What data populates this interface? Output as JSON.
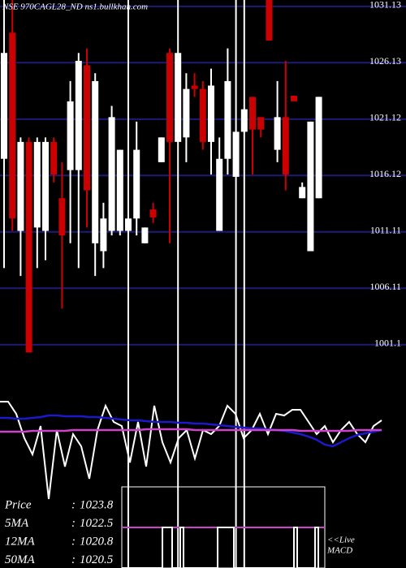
{
  "chart_data": [
    {
      "type": "candlestick",
      "title": "NSE 970CAGL28_ND ns1.bullkhan.com",
      "open": [
        1017.6,
        1028.8,
        1011.2,
        1019.1,
        1011.5,
        1011.2,
        1019.1,
        1014.1,
        1016.6,
        1016.6,
        1025.9,
        1010.1,
        1009.4,
        1011.2,
        1011.2,
        1011.2,
        1012.3,
        1010.1,
        1013.1,
        1017.3,
        1027.0,
        1019.1,
        1019.5,
        1024.1,
        1023.8,
        1019.1,
        1011.2,
        1017.6,
        1016.0,
        1020.0,
        1023.1,
        1021.3,
        1031.7,
        1018.4,
        1021.3,
        1023.2,
        1014.1,
        1009.4,
        1014.1
      ],
      "high": [
        1031.7,
        1031.7,
        1019.5,
        1019.5,
        1019.5,
        1019.5,
        1019.5,
        1017.3,
        1024.5,
        1027.0,
        1027.4,
        1025.2,
        1013.7,
        1022.3,
        1018.4,
        1031.7,
        1020.9,
        1011.5,
        1013.7,
        1019.5,
        1027.4,
        1031.7,
        1025.2,
        1025.2,
        1024.5,
        1025.6,
        1019.5,
        1027.4,
        1031.7,
        1031.7,
        1023.1,
        1021.3,
        1031.7,
        1024.5,
        1026.3,
        1023.2,
        1015.5,
        1020.9,
        1023.1
      ],
      "low": [
        1007.9,
        1011.2,
        1007.2,
        1000.4,
        1007.9,
        1008.6,
        1015.5,
        1004.3,
        1010.1,
        1007.9,
        1011.5,
        1007.2,
        1007.9,
        1010.8,
        1010.8,
        981.3,
        1010.8,
        1010.1,
        1011.9,
        1017.3,
        1010.1,
        981.3,
        1017.3,
        1023.1,
        1018.4,
        1016.2,
        1011.2,
        1016.2,
        981.3,
        981.3,
        1016.2,
        1019.5,
        1028.1,
        1017.3,
        1014.8,
        1022.7,
        1014.1,
        1009.4,
        1014.1
      ],
      "close": [
        1027.0,
        1012.3,
        1019.1,
        1000.4,
        1019.1,
        1019.1,
        1016.2,
        1010.8,
        1022.7,
        1026.3,
        1014.8,
        1024.5,
        1012.3,
        1021.3,
        1018.4,
        1012.3,
        1018.4,
        1011.5,
        1012.4,
        1019.5,
        1019.1,
        1027.0,
        1023.8,
        1023.8,
        1019.1,
        1024.1,
        1017.6,
        1024.5,
        1020.0,
        1022.0,
        1020.2,
        1020.2,
        1028.1,
        1021.3,
        1016.2,
        1022.7,
        1015.1,
        1020.9,
        1023.1
      ],
      "up_color": "#ffffff",
      "down_color": "#cc0000",
      "ylim": [
        1000,
        1031.7
      ],
      "yticks": [
        1031.13,
        1026.13,
        1021.12,
        1016.12,
        1011.11,
        1006.11,
        1001.1
      ],
      "grid": true,
      "grid_color": "#1c1c78",
      "stats": [
        {
          "label": "Price",
          "value": 1023.8
        },
        {
          "label": "5MA",
          "value": 1022.5
        },
        {
          "label": "12MA",
          "value": 1020.8
        },
        {
          "label": "50MA",
          "value": 1020.5
        }
      ],
      "stat_separator": ":"
    },
    {
      "type": "line",
      "indicator_label": [
        "<<Live",
        "MACD"
      ],
      "ylim": [
        0,
        140
      ],
      "series": [
        {
          "color": "#ffffff",
          "values": [
            125,
            125,
            110,
            80,
            60,
            95,
            5,
            90,
            45,
            85,
            70,
            30,
            90,
            120,
            100,
            95,
            50,
            100,
            45,
            120,
            75,
            50,
            80,
            90,
            55,
            90,
            85,
            95,
            120,
            110,
            80,
            90,
            110,
            85,
            110,
            108,
            115,
            115,
            100,
            85,
            95,
            75,
            90,
            100,
            85,
            75,
            95,
            102
          ]
        },
        {
          "color": "#1a1acc",
          "values": [
            105,
            105,
            104,
            104,
            105,
            106,
            108,
            108,
            107,
            107,
            107,
            106,
            106,
            105,
            104,
            103,
            102,
            102,
            101,
            100,
            100,
            100,
            99,
            99,
            98,
            98,
            97,
            96,
            95,
            94,
            93,
            92,
            92,
            91,
            90,
            89,
            87,
            85,
            82,
            78,
            72,
            70,
            75,
            80,
            84,
            86,
            88,
            90
          ]
        },
        {
          "color": "#cc44cc",
          "values": [
            88,
            88,
            88,
            88,
            89,
            89,
            89,
            89,
            89,
            90,
            90,
            90,
            90,
            90,
            90,
            90,
            90,
            90,
            91,
            91,
            91,
            91,
            91,
            91,
            90,
            90,
            90,
            90,
            90,
            90,
            90,
            90,
            90,
            90,
            90,
            90,
            90,
            89,
            89,
            89,
            89,
            89,
            89,
            89,
            90,
            90,
            90,
            90
          ]
        }
      ]
    }
  ]
}
